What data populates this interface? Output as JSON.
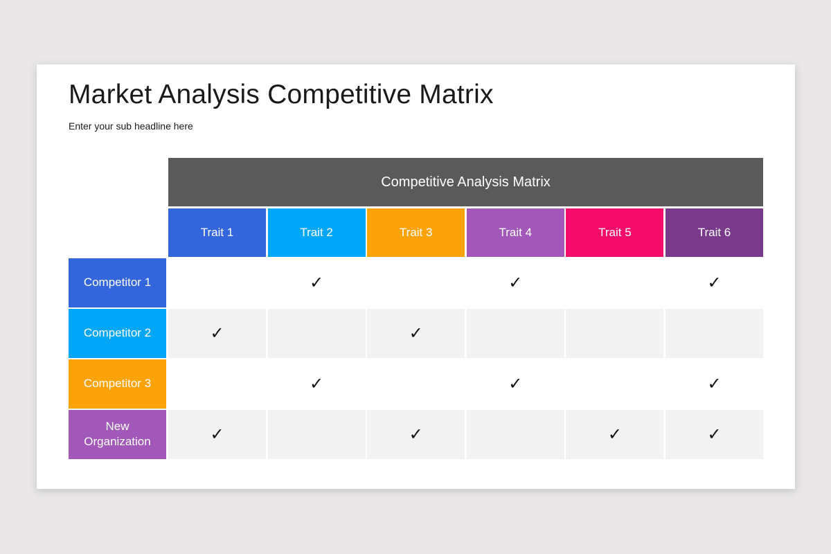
{
  "slide": {
    "title": "Market Analysis Competitive Matrix",
    "subtitle": "Enter your sub headline here"
  },
  "matrix": {
    "header": "Competitive Analysis Matrix",
    "header_color": "#5a5a5a",
    "traits": [
      {
        "label": "Trait 1",
        "color": "#3366dd"
      },
      {
        "label": "Trait 2",
        "color": "#00a6f8"
      },
      {
        "label": "Trait 3",
        "color": "#fca30a"
      },
      {
        "label": "Trait 4",
        "color": "#a158b8"
      },
      {
        "label": "Trait 5",
        "color": "#f50c6a"
      },
      {
        "label": "Trait 6",
        "color": "#7a3a8c"
      }
    ],
    "competitors": [
      {
        "label": "Competitor 1",
        "color": "#3366dd",
        "checks": [
          false,
          true,
          false,
          true,
          false,
          true
        ]
      },
      {
        "label": "Competitor 2",
        "color": "#00a6f8",
        "checks": [
          true,
          false,
          true,
          false,
          false,
          false
        ]
      },
      {
        "label": "Competitor 3",
        "color": "#fca30a",
        "checks": [
          false,
          true,
          false,
          true,
          false,
          true
        ]
      },
      {
        "label": "New Organization",
        "color": "#a158b8",
        "checks": [
          true,
          false,
          true,
          false,
          true,
          true
        ]
      }
    ],
    "check_symbol": "✓",
    "check_icon": "checkmark-icon"
  }
}
